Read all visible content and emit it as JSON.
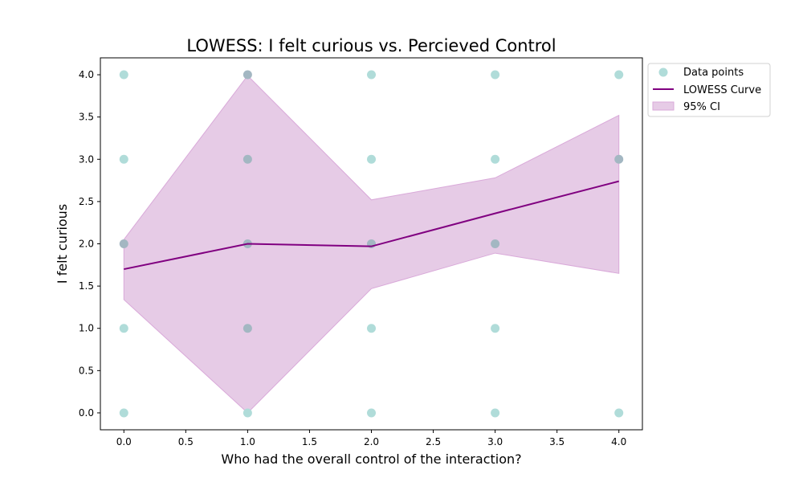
{
  "chart_data": {
    "type": "scatter",
    "title": "LOWESS: I felt curious vs. Percieved Control",
    "xlabel": "Who had the overall control of the interaction?",
    "ylabel": "I felt curious",
    "xlim": [
      -0.19,
      4.19
    ],
    "ylim": [
      -0.2,
      4.2
    ],
    "x_ticks": [
      "0.0",
      "0.5",
      "1.0",
      "1.5",
      "2.0",
      "2.5",
      "3.0",
      "3.5",
      "4.0"
    ],
    "y_ticks": [
      "0.0",
      "0.5",
      "1.0",
      "1.5",
      "2.0",
      "2.5",
      "3.0",
      "3.5",
      "4.0"
    ],
    "grid": false,
    "legend_position": "outside-top-right",
    "colors": {
      "points": "#b0dcd9",
      "points_overlap": "#a3b7c2",
      "lowess": "#800080",
      "ci_fill": "#e6cbe6",
      "ci_edge": "#d9a9d9"
    },
    "series": [
      {
        "name": "Data points",
        "kind": "scatter",
        "points": [
          {
            "x": 0,
            "y": 4,
            "overlap": false
          },
          {
            "x": 0,
            "y": 3,
            "overlap": false
          },
          {
            "x": 0,
            "y": 2,
            "overlap": true
          },
          {
            "x": 0,
            "y": 1,
            "overlap": false
          },
          {
            "x": 0,
            "y": 0,
            "overlap": false
          },
          {
            "x": 1,
            "y": 4,
            "overlap": true
          },
          {
            "x": 1,
            "y": 3,
            "overlap": true
          },
          {
            "x": 1,
            "y": 2,
            "overlap": true
          },
          {
            "x": 1,
            "y": 1,
            "overlap": true
          },
          {
            "x": 1,
            "y": 0,
            "overlap": false
          },
          {
            "x": 2,
            "y": 4,
            "overlap": false
          },
          {
            "x": 2,
            "y": 3,
            "overlap": false
          },
          {
            "x": 2,
            "y": 2,
            "overlap": true
          },
          {
            "x": 2,
            "y": 1,
            "overlap": false
          },
          {
            "x": 2,
            "y": 0,
            "overlap": false
          },
          {
            "x": 3,
            "y": 4,
            "overlap": false
          },
          {
            "x": 3,
            "y": 3,
            "overlap": false
          },
          {
            "x": 3,
            "y": 2,
            "overlap": true
          },
          {
            "x": 3,
            "y": 1,
            "overlap": false
          },
          {
            "x": 3,
            "y": 0,
            "overlap": false
          },
          {
            "x": 4,
            "y": 4,
            "overlap": false
          },
          {
            "x": 4,
            "y": 3,
            "overlap": true
          },
          {
            "x": 4,
            "y": 0,
            "overlap": false
          }
        ]
      },
      {
        "name": "LOWESS Curve",
        "kind": "line",
        "x": [
          0,
          1,
          2,
          3,
          4
        ],
        "y": [
          1.7,
          2.0,
          1.97,
          2.36,
          2.74
        ]
      },
      {
        "name": "95% CI",
        "kind": "band",
        "x": [
          0,
          1,
          2,
          3,
          4
        ],
        "lower": [
          1.34,
          0.0,
          1.47,
          1.89,
          1.65
        ],
        "upper": [
          2.05,
          3.99,
          2.52,
          2.78,
          3.52
        ]
      }
    ]
  }
}
